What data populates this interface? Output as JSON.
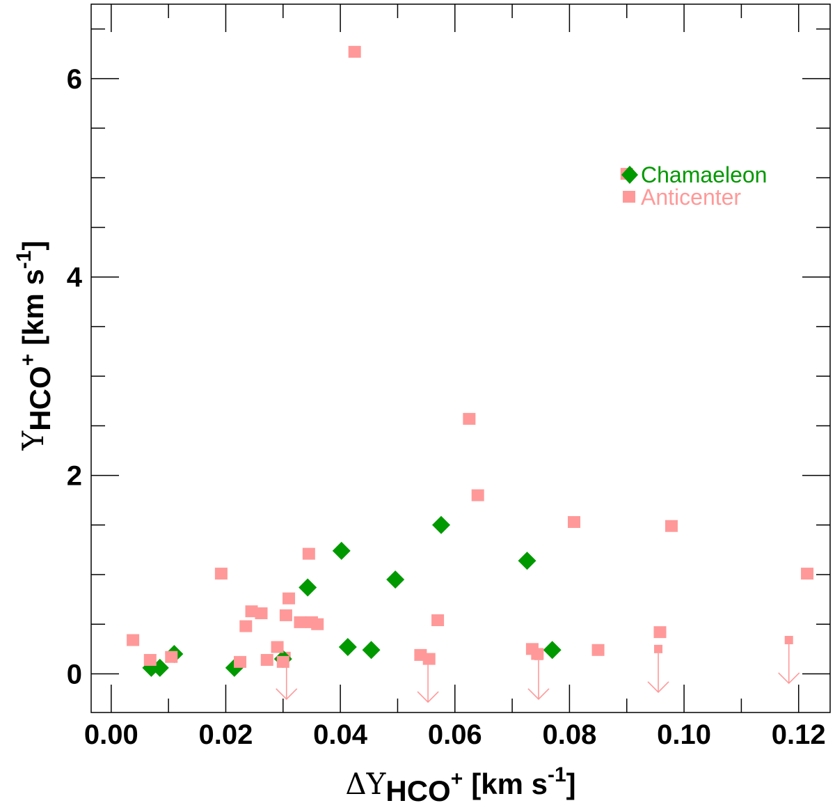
{
  "chart_data": {
    "type": "scatter",
    "title": "",
    "xlabel": {
      "greek": "ΔΥ",
      "sub": "HCO",
      "sup": "+",
      "units": "[km s",
      "units_sup": "-1",
      "units_close": "]"
    },
    "ylabel": {
      "greek": "Υ",
      "sub": "HCO",
      "sup": "+",
      "units": "[km s",
      "units_sup": "-1",
      "units_close": "]"
    },
    "xlim": [
      -0.0035,
      0.1255
    ],
    "ylim": [
      -0.39,
      6.75
    ],
    "xticks": [
      {
        "value": 0.0,
        "label": "0.00"
      },
      {
        "value": 0.02,
        "label": "0.02"
      },
      {
        "value": 0.04,
        "label": "0.04"
      },
      {
        "value": 0.06,
        "label": "0.06"
      },
      {
        "value": 0.08,
        "label": "0.08"
      },
      {
        "value": 0.1,
        "label": "0.10"
      },
      {
        "value": 0.12,
        "label": "0.12"
      }
    ],
    "yticks": [
      {
        "value": 0,
        "label": "0"
      },
      {
        "value": 2,
        "label": "2"
      },
      {
        "value": 4,
        "label": "4"
      },
      {
        "value": 6,
        "label": "6"
      }
    ],
    "legend_position": "top-right",
    "series": [
      {
        "name": "Chamaeleon",
        "color": "#009900",
        "marker": "diamond",
        "points": [
          [
            0.007,
            0.06
          ],
          [
            0.0085,
            0.06
          ],
          [
            0.011,
            0.2
          ],
          [
            0.0215,
            0.06
          ],
          [
            0.03,
            0.15
          ],
          [
            0.0343,
            0.87
          ],
          [
            0.0402,
            1.24
          ],
          [
            0.0413,
            0.27
          ],
          [
            0.0454,
            0.24
          ],
          [
            0.0496,
            0.95
          ],
          [
            0.0576,
            1.5
          ],
          [
            0.0726,
            1.14
          ],
          [
            0.077,
            0.24
          ]
        ]
      },
      {
        "name": "Anticenter",
        "color": "#ff9999",
        "marker": "square",
        "points": [
          [
            0.0038,
            0.34
          ],
          [
            0.0068,
            0.14
          ],
          [
            0.0105,
            0.17
          ],
          [
            0.0192,
            1.01
          ],
          [
            0.0225,
            0.12
          ],
          [
            0.0235,
            0.48
          ],
          [
            0.0245,
            0.63
          ],
          [
            0.0262,
            0.61
          ],
          [
            0.0272,
            0.14
          ],
          [
            0.029,
            0.27
          ],
          [
            0.03,
            0.12
          ],
          [
            0.0305,
            0.59
          ],
          [
            0.031,
            0.76
          ],
          [
            0.033,
            0.52
          ],
          [
            0.0345,
            1.21
          ],
          [
            0.035,
            0.52
          ],
          [
            0.036,
            0.5
          ],
          [
            0.0425,
            6.27
          ],
          [
            0.054,
            0.19
          ],
          [
            0.0555,
            0.15
          ],
          [
            0.057,
            0.54
          ],
          [
            0.0625,
            2.57
          ],
          [
            0.064,
            1.8
          ],
          [
            0.0735,
            0.25
          ],
          [
            0.0744,
            0.2
          ],
          [
            0.0808,
            1.53
          ],
          [
            0.085,
            0.24
          ],
          [
            0.09,
            5.04
          ],
          [
            0.0958,
            0.42
          ],
          [
            0.0978,
            1.49
          ],
          [
            0.1215,
            1.01
          ]
        ]
      }
    ],
    "upper_limits": {
      "name": "Anticenter",
      "color": "#ff9999",
      "points": [
        [
          0.0306,
          0.18
        ],
        [
          0.0553,
          0.15
        ],
        [
          0.0746,
          0.18
        ],
        [
          0.0955,
          0.25
        ],
        [
          0.1183,
          0.34
        ]
      ]
    }
  },
  "legend": {
    "items": [
      {
        "label": "Chamaeleon",
        "color": "#009900",
        "marker": "diamond"
      },
      {
        "label": "Anticenter",
        "color": "#ff9999",
        "marker": "square"
      }
    ]
  }
}
